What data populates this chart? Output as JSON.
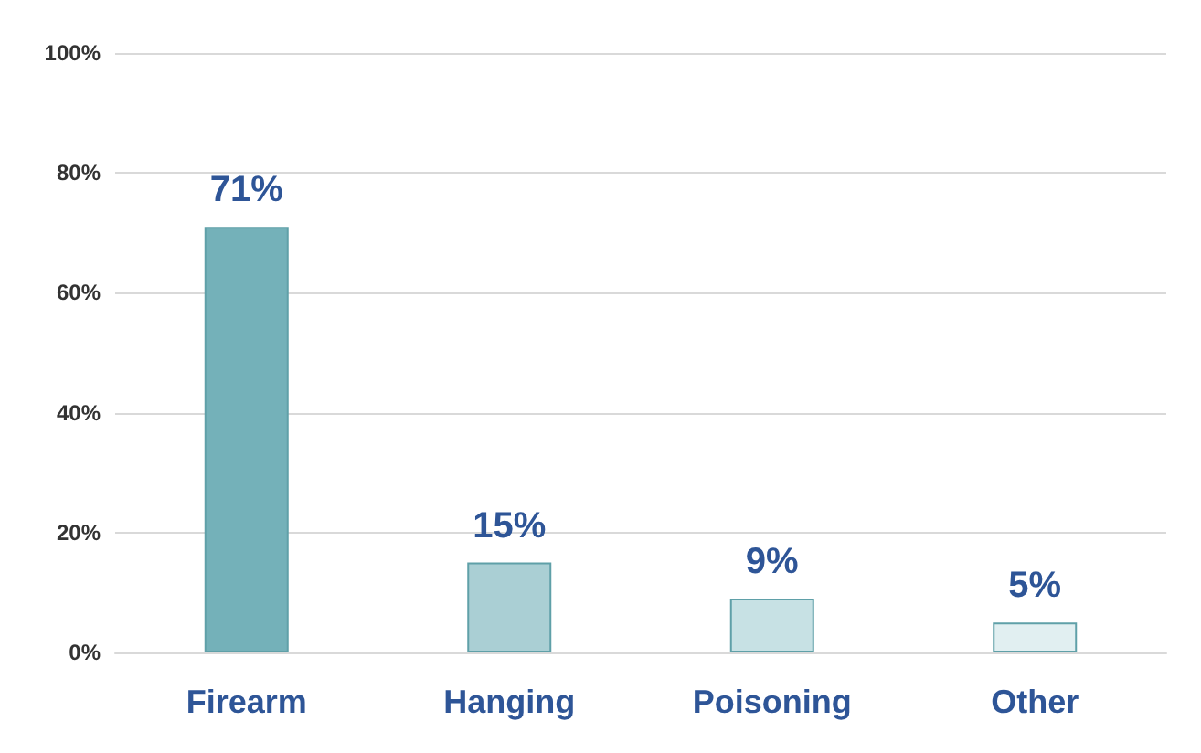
{
  "chart_data": {
    "type": "bar",
    "categories": [
      "Firearm",
      "Hanging",
      "Poisoning",
      "Other"
    ],
    "values": [
      71,
      15,
      9,
      5
    ],
    "colors": [
      "#74b1b9",
      "#aacfd4",
      "#c7e1e4",
      "#e1eff1"
    ],
    "value_labels": [
      "71%",
      "15%",
      "9%",
      "5%"
    ],
    "ylim": [
      0,
      100
    ],
    "yticks": [
      {
        "value": 0,
        "label": "0%"
      },
      {
        "value": 20,
        "label": "20%"
      },
      {
        "value": 40,
        "label": "40%"
      },
      {
        "value": 60,
        "label": "60%"
      },
      {
        "value": 80,
        "label": "80%"
      },
      {
        "value": 100,
        "label": "100%"
      }
    ],
    "grid": "y"
  }
}
